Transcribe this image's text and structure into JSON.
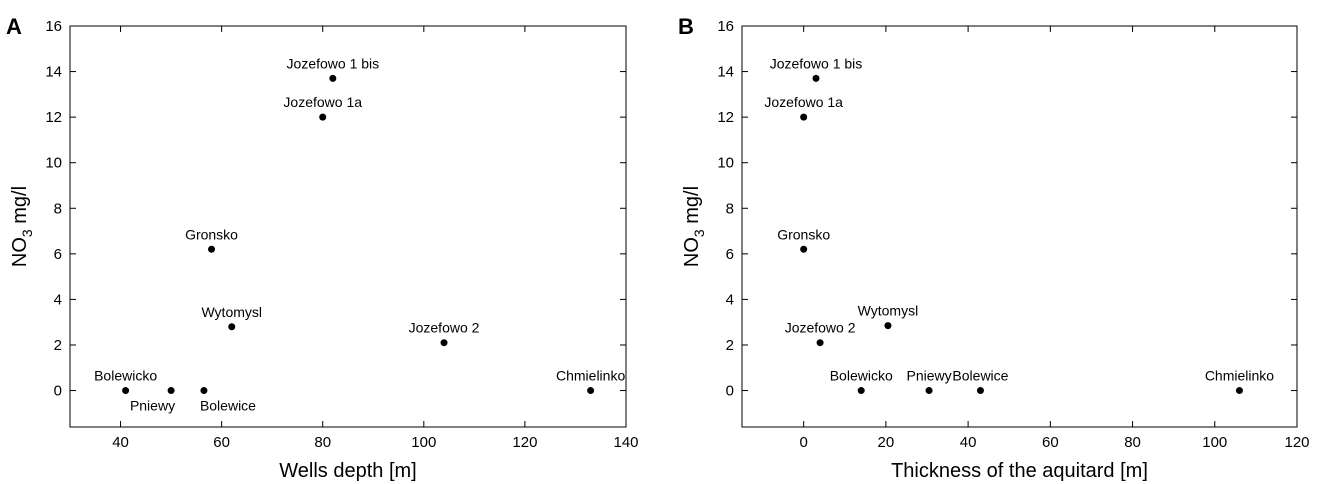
{
  "chart_data": [
    {
      "type": "scatter",
      "panel_label": "A",
      "title": "",
      "xlabel": "Wells depth [m]",
      "ylabel_main": "NO",
      "ylabel_sub": "3",
      "ylabel_rest": " mg/l",
      "xlim": [
        30,
        140
      ],
      "ylim": [
        -1.6,
        16
      ],
      "xticks": [
        40,
        60,
        80,
        100,
        120,
        140
      ],
      "yticks": [
        0,
        2,
        4,
        6,
        8,
        10,
        12,
        14,
        16
      ],
      "grid": false,
      "points": [
        {
          "label": "Jozefowo 1 bis",
          "x": 82,
          "y": 13.7,
          "anchor": "middle",
          "pos": "above"
        },
        {
          "label": "Jozefowo 1a",
          "x": 80,
          "y": 12.0,
          "anchor": "middle",
          "pos": "above"
        },
        {
          "label": "Gronsko",
          "x": 58,
          "y": 6.2,
          "anchor": "middle",
          "pos": "above"
        },
        {
          "label": "Wytomysl",
          "x": 62,
          "y": 2.8,
          "anchor": "middle",
          "pos": "above"
        },
        {
          "label": "Jozefowo 2",
          "x": 104,
          "y": 2.1,
          "anchor": "middle",
          "pos": "above"
        },
        {
          "label": "Bolewicko",
          "x": 41,
          "y": 0,
          "anchor": "middle",
          "pos": "above"
        },
        {
          "label": "Pniewy",
          "x": 50,
          "y": 0,
          "anchor": "end",
          "pos": "below"
        },
        {
          "label": "Bolewice",
          "x": 56.5,
          "y": 0,
          "anchor": "start",
          "pos": "below"
        },
        {
          "label": "Chmielinko",
          "x": 133,
          "y": 0,
          "anchor": "middle",
          "pos": "above"
        }
      ]
    },
    {
      "type": "scatter",
      "panel_label": "B",
      "title": "",
      "xlabel": "Thickness of the aquitard [m]",
      "ylabel_main": "NO",
      "ylabel_sub": "3",
      "ylabel_rest": " mg/l",
      "xlim": [
        -15,
        120
      ],
      "ylim": [
        -1.6,
        16
      ],
      "xticks": [
        0,
        20,
        40,
        60,
        80,
        100,
        120
      ],
      "yticks": [
        0,
        2,
        4,
        6,
        8,
        10,
        12,
        14,
        16
      ],
      "grid": false,
      "points": [
        {
          "label": "Jozefowo 1 bis",
          "x": 3,
          "y": 13.7,
          "anchor": "middle",
          "pos": "above"
        },
        {
          "label": "Jozefowo 1a",
          "x": 0,
          "y": 12.0,
          "anchor": "middle",
          "pos": "above"
        },
        {
          "label": "Gronsko",
          "x": 0,
          "y": 6.2,
          "anchor": "middle",
          "pos": "above"
        },
        {
          "label": "Wytomysl",
          "x": 20.5,
          "y": 2.85,
          "anchor": "middle",
          "pos": "above"
        },
        {
          "label": "Jozefowo 2",
          "x": 4,
          "y": 2.1,
          "anchor": "middle",
          "pos": "above"
        },
        {
          "label": "Bolewicko",
          "x": 14,
          "y": 0,
          "anchor": "middle",
          "pos": "above"
        },
        {
          "label": "Pniewy",
          "x": 30.5,
          "y": 0,
          "anchor": "middle",
          "pos": "above"
        },
        {
          "label": "Bolewice",
          "x": 43,
          "y": 0,
          "anchor": "middle",
          "pos": "above"
        },
        {
          "label": "Chmielinko",
          "x": 106,
          "y": 0,
          "anchor": "middle",
          "pos": "above"
        }
      ]
    }
  ]
}
